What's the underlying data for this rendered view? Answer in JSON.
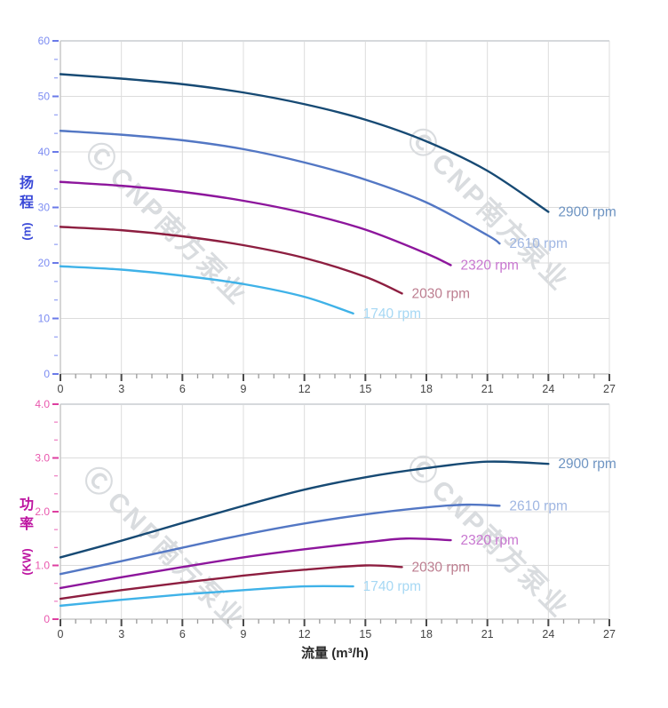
{
  "watermark": {
    "logo": "Ⓒ",
    "text": "CNP南方泵业"
  },
  "colors": {
    "grid": "#dcdcdc",
    "frame": "#d6d9dc",
    "axis": "#c9c9c9",
    "x_tick_major": "#4a4a4a",
    "x_tick_minor": "#9a9a9a",
    "x_tick_label": "#444444",
    "head_axis_title": "#3a49d8",
    "head_tick_label": "#7c8cf2",
    "head_tick_major": "#6a7ae8",
    "head_tick_minor": "#9aa6f5",
    "power_axis_title": "#bd13a0",
    "power_tick_label": "#e958ae",
    "power_tick_major": "#dd3fa0",
    "power_tick_minor": "#ef86c6"
  },
  "chart_data": [
    {
      "type": "line",
      "title": "",
      "ylabel_cjk": "扬程",
      "ylabel_unit": "(m)",
      "xlabel": "",
      "xlim": [
        0,
        27
      ],
      "ylim": [
        0,
        60
      ],
      "x_major": 3,
      "y_major": 10,
      "grid": true,
      "legend_position": "curve-end-labels",
      "x_tick_labels": [
        "0",
        "3",
        "6",
        "9",
        "12",
        "15",
        "18",
        "21",
        "24",
        "27"
      ],
      "y_tick_labels": [
        "0",
        "10",
        "20",
        "30",
        "40",
        "50",
        "60"
      ],
      "series": [
        {
          "name": "2900 rpm",
          "color": "#174a74",
          "label_color": "#6e94c2",
          "points": [
            [
              0,
              54
            ],
            [
              3,
              53.2
            ],
            [
              6,
              52.2
            ],
            [
              9,
              50.7
            ],
            [
              12,
              48.6
            ],
            [
              15,
              45.8
            ],
            [
              18,
              41.9
            ],
            [
              21,
              36.6
            ],
            [
              24,
              29.2
            ]
          ]
        },
        {
          "name": "2610 rpm",
          "color": "#5377c4",
          "label_color": "#9fb6e2",
          "points": [
            [
              0,
              43.8
            ],
            [
              3,
              43.1
            ],
            [
              6,
              42.1
            ],
            [
              9,
              40.5
            ],
            [
              12,
              38.1
            ],
            [
              15,
              35.0
            ],
            [
              18,
              30.9
            ],
            [
              21,
              25.0
            ],
            [
              21.6,
              23.5
            ]
          ]
        },
        {
          "name": "2320 rpm",
          "color": "#8d169c",
          "label_color": "#c877d0",
          "points": [
            [
              0,
              34.6
            ],
            [
              3,
              33.9
            ],
            [
              6,
              32.8
            ],
            [
              9,
              31.2
            ],
            [
              12,
              29.0
            ],
            [
              15,
              26.0
            ],
            [
              18,
              21.7
            ],
            [
              19.2,
              19.6
            ]
          ]
        },
        {
          "name": "2030 rpm",
          "color": "#8d1e40",
          "label_color": "#bd7e90",
          "points": [
            [
              0,
              26.5
            ],
            [
              3,
              25.9
            ],
            [
              6,
              24.8
            ],
            [
              9,
              23.2
            ],
            [
              12,
              20.9
            ],
            [
              15,
              17.5
            ],
            [
              16.8,
              14.5
            ]
          ]
        },
        {
          "name": "1740 rpm",
          "color": "#3fb2e8",
          "label_color": "#a6d8f4",
          "points": [
            [
              0,
              19.4
            ],
            [
              3,
              18.8
            ],
            [
              6,
              17.7
            ],
            [
              9,
              16.2
            ],
            [
              12,
              13.9
            ],
            [
              14.4,
              10.9
            ]
          ]
        }
      ]
    },
    {
      "type": "line",
      "title": "",
      "ylabel_cjk": "功率",
      "ylabel_unit": "(KW)",
      "xlabel": "流量 (m³/h)",
      "xlim": [
        0,
        27
      ],
      "ylim": [
        0,
        4
      ],
      "x_major": 3,
      "y_major": 1,
      "grid": true,
      "legend_position": "curve-end-labels",
      "x_tick_labels": [
        "0",
        "3",
        "6",
        "9",
        "12",
        "15",
        "18",
        "21",
        "24",
        "27"
      ],
      "y_tick_labels": [
        "0",
        "1.0",
        "2.0",
        "3.0",
        "4.0"
      ],
      "series": [
        {
          "name": "2900 rpm",
          "color": "#174a74",
          "label_color": "#6e94c2",
          "points": [
            [
              0,
              1.15
            ],
            [
              3,
              1.46
            ],
            [
              6,
              1.79
            ],
            [
              9,
              2.11
            ],
            [
              12,
              2.41
            ],
            [
              15,
              2.64
            ],
            [
              18,
              2.81
            ],
            [
              21,
              2.93
            ],
            [
              24,
              2.89
            ]
          ]
        },
        {
          "name": "2610 rpm",
          "color": "#5377c4",
          "label_color": "#9fb6e2",
          "points": [
            [
              0,
              0.84
            ],
            [
              3,
              1.08
            ],
            [
              6,
              1.33
            ],
            [
              9,
              1.57
            ],
            [
              12,
              1.78
            ],
            [
              15,
              1.95
            ],
            [
              18,
              2.08
            ],
            [
              20,
              2.13
            ],
            [
              21.6,
              2.11
            ]
          ]
        },
        {
          "name": "2320 rpm",
          "color": "#8d169c",
          "label_color": "#c877d0",
          "points": [
            [
              0,
              0.58
            ],
            [
              3,
              0.78
            ],
            [
              6,
              0.97
            ],
            [
              9,
              1.15
            ],
            [
              12,
              1.3
            ],
            [
              15,
              1.43
            ],
            [
              17,
              1.5
            ],
            [
              19.2,
              1.47
            ]
          ]
        },
        {
          "name": "2030 rpm",
          "color": "#8d1e40",
          "label_color": "#bd7e90",
          "points": [
            [
              0,
              0.38
            ],
            [
              3,
              0.54
            ],
            [
              6,
              0.68
            ],
            [
              9,
              0.81
            ],
            [
              12,
              0.92
            ],
            [
              15,
              1.0
            ],
            [
              16.8,
              0.97
            ]
          ]
        },
        {
          "name": "1740 rpm",
          "color": "#3fb2e8",
          "label_color": "#a6d8f4",
          "points": [
            [
              0,
              0.25
            ],
            [
              3,
              0.36
            ],
            [
              6,
              0.46
            ],
            [
              9,
              0.54
            ],
            [
              12,
              0.61
            ],
            [
              14.4,
              0.61
            ]
          ]
        }
      ]
    }
  ]
}
